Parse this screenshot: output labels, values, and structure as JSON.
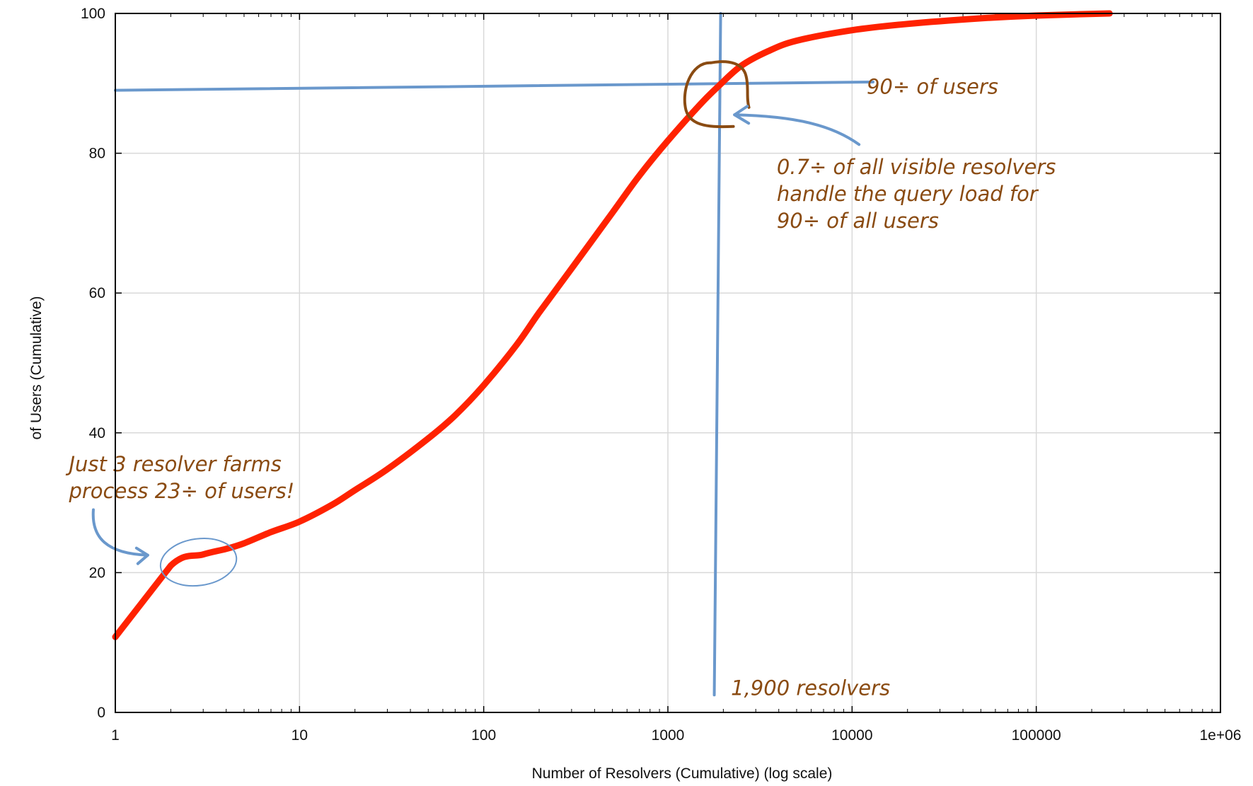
{
  "chart_data": {
    "type": "line",
    "title": "",
    "xlabel": "Number of Resolvers (Cumulative) (log scale)",
    "ylabel": "of Users (Cumulative)",
    "xscale": "log",
    "xlim": [
      1,
      1000000
    ],
    "ylim": [
      0,
      100
    ],
    "grid": true,
    "x_ticks": [
      {
        "value": 1,
        "label": "1"
      },
      {
        "value": 10,
        "label": "10"
      },
      {
        "value": 100,
        "label": "100"
      },
      {
        "value": 1000,
        "label": "1000"
      },
      {
        "value": 10000,
        "label": "10000"
      },
      {
        "value": 100000,
        "label": "100000"
      },
      {
        "value": 1000000,
        "label": "1e+06"
      }
    ],
    "y_ticks": [
      {
        "value": 0,
        "label": "0"
      },
      {
        "value": 20,
        "label": "20"
      },
      {
        "value": 40,
        "label": "40"
      },
      {
        "value": 60,
        "label": "60"
      },
      {
        "value": 80,
        "label": "80"
      },
      {
        "value": 100,
        "label": "100"
      }
    ],
    "series": [
      {
        "color": "#ff2200",
        "points": [
          [
            1,
            10.8
          ],
          [
            2,
            21
          ],
          [
            3,
            22.6
          ],
          [
            4,
            23.4
          ],
          [
            5,
            24.2
          ],
          [
            7,
            25.8
          ],
          [
            10,
            27.3
          ],
          [
            15,
            29.7
          ],
          [
            20,
            31.8
          ],
          [
            30,
            34.8
          ],
          [
            50,
            39.2
          ],
          [
            70,
            42.5
          ],
          [
            100,
            46.8
          ],
          [
            150,
            52.5
          ],
          [
            200,
            57.2
          ],
          [
            300,
            63.5
          ],
          [
            500,
            71.5
          ],
          [
            700,
            76.8
          ],
          [
            1000,
            81.8
          ],
          [
            1500,
            87
          ],
          [
            1900,
            89.7
          ],
          [
            2500,
            92.5
          ],
          [
            3500,
            94.6
          ],
          [
            5000,
            96.1
          ],
          [
            10000,
            97.6
          ],
          [
            20000,
            98.5
          ],
          [
            50000,
            99.3
          ],
          [
            100000,
            99.7
          ],
          [
            250000,
            100
          ]
        ]
      }
    ],
    "reference_lines": {
      "color": "#6a98cc",
      "horizontal": {
        "x_from": 1,
        "x_to": 13000,
        "y_from": 89,
        "y_to": 90.2
      },
      "vertical": {
        "x": 1900,
        "y_from": 2.5,
        "y_to": 100
      }
    },
    "annotations": [
      {
        "lines": [
          "90÷ of users"
        ],
        "x": 12000,
        "y": 88.5,
        "color": "#8a4b12"
      },
      {
        "lines": [
          "0.7÷ of all visible resolvers",
          "handle the query load for",
          "90÷ of all users"
        ],
        "x": 3900,
        "y": 77,
        "color": "#8a4b12"
      },
      {
        "lines": [
          "1,900 resolvers"
        ],
        "x": 2200,
        "y": 2.5,
        "color": "#8a4b12"
      },
      {
        "lines": [
          "Just 3 resolver farms",
          "process 23÷ of users!"
        ],
        "x": 0.56,
        "y": 34.5,
        "color": "#8a4b12"
      }
    ]
  }
}
